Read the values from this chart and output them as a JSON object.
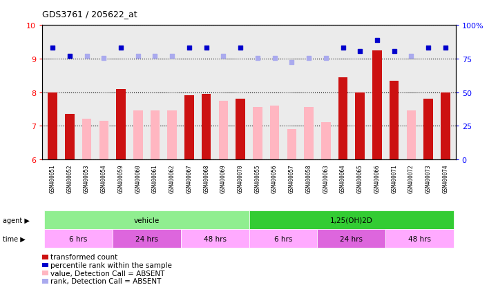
{
  "title": "GDS3761 / 205622_at",
  "samples": [
    "GSM400051",
    "GSM400052",
    "GSM400053",
    "GSM400054",
    "GSM400059",
    "GSM400060",
    "GSM400061",
    "GSM400062",
    "GSM400067",
    "GSM400068",
    "GSM400069",
    "GSM400070",
    "GSM400055",
    "GSM400056",
    "GSM400057",
    "GSM400058",
    "GSM400063",
    "GSM400064",
    "GSM400065",
    "GSM400066",
    "GSM400071",
    "GSM400072",
    "GSM400073",
    "GSM400074"
  ],
  "transformed_count_present": [
    8.0,
    7.35,
    null,
    null,
    8.1,
    null,
    null,
    null,
    7.9,
    7.95,
    null,
    7.8,
    null,
    null,
    null,
    null,
    null,
    8.45,
    8.0,
    9.25,
    8.35,
    null,
    7.8,
    8.0
  ],
  "transformed_count_absent": [
    null,
    null,
    7.2,
    7.15,
    null,
    7.45,
    7.45,
    7.45,
    null,
    null,
    7.75,
    null,
    7.55,
    7.6,
    6.9,
    7.55,
    7.1,
    null,
    null,
    null,
    null,
    7.45,
    null,
    null
  ],
  "percentile_rank_present": [
    9.32,
    9.08,
    null,
    null,
    9.32,
    null,
    null,
    null,
    9.32,
    9.32,
    null,
    9.32,
    null,
    null,
    null,
    null,
    null,
    9.32,
    9.22,
    9.55,
    9.22,
    null,
    9.32,
    9.32
  ],
  "percentile_rank_absent": [
    null,
    null,
    9.08,
    9.02,
    null,
    9.08,
    9.08,
    9.08,
    null,
    null,
    9.08,
    null,
    9.02,
    9.02,
    8.9,
    9.02,
    9.02,
    null,
    null,
    null,
    null,
    9.08,
    null,
    null
  ],
  "agent_groups": [
    {
      "label": "vehicle",
      "start": 0,
      "end": 11,
      "color": "#90EE90"
    },
    {
      "label": "1,25(OH)2D",
      "start": 12,
      "end": 23,
      "color": "#33CC33"
    }
  ],
  "time_groups": [
    {
      "label": "6 hrs",
      "start": 0,
      "end": 3,
      "color": "#FFAAFF"
    },
    {
      "label": "24 hrs",
      "start": 4,
      "end": 7,
      "color": "#DD66DD"
    },
    {
      "label": "48 hrs",
      "start": 8,
      "end": 11,
      "color": "#FFAAFF"
    },
    {
      "label": "6 hrs",
      "start": 12,
      "end": 15,
      "color": "#FFAAFF"
    },
    {
      "label": "24 hrs",
      "start": 16,
      "end": 19,
      "color": "#DD66DD"
    },
    {
      "label": "48 hrs",
      "start": 20,
      "end": 23,
      "color": "#FFAAFF"
    }
  ],
  "ylim_left": [
    6,
    10
  ],
  "ylim_right": [
    0,
    100
  ],
  "yticks_left": [
    6,
    7,
    8,
    9,
    10
  ],
  "yticks_right": [
    0,
    25,
    50,
    75,
    100
  ],
  "bar_color_present": "#CC1111",
  "bar_color_absent": "#FFB6C1",
  "dot_color_present": "#0000CC",
  "dot_color_absent": "#AAAAEE",
  "background_color": "#FFFFFF",
  "bar_width": 0.55,
  "dot_size": 22,
  "chart_bg": "#EBEBEB"
}
